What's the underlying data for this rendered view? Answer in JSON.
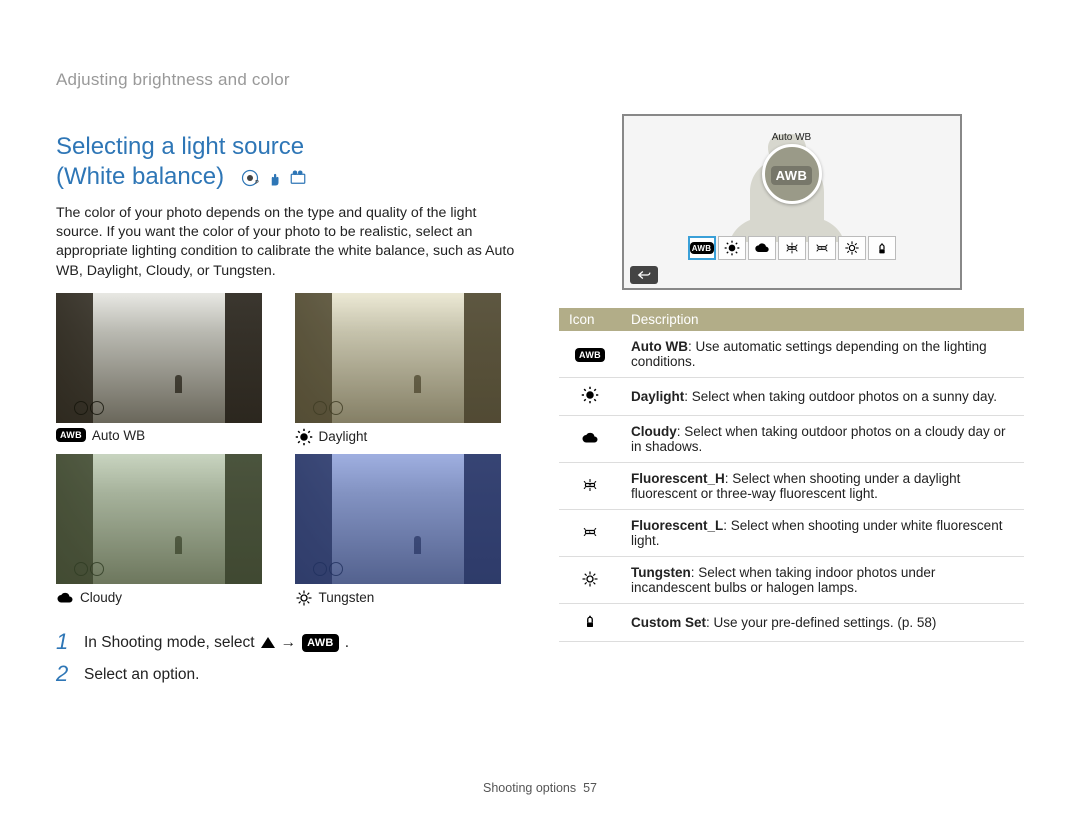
{
  "breadcrumb": "Adjusting brightness and color",
  "title_line1": "Selecting a light source",
  "title_line2": "(White balance)",
  "intro": "The color of your photo depends on the type and quality of the light source. If you want the color of your photo to be realistic, select an appropriate lighting condition to calibrate the white balance, such as Auto WB, Daylight, Cloudy, or Tungsten.",
  "samples": [
    {
      "label": "Auto WB",
      "icon": "awb",
      "tint_overlay": "rgba(0,0,0,0)"
    },
    {
      "label": "Daylight",
      "icon": "daylight",
      "tint_overlay": "rgba(255,240,150,0.18)"
    },
    {
      "label": "Cloudy",
      "icon": "cloudy",
      "tint_overlay": "rgba(120,160,100,0.28)"
    },
    {
      "label": "Tungsten",
      "icon": "tungsten",
      "tint_overlay": "rgba(50,90,220,0.40)"
    }
  ],
  "steps": {
    "s1_prefix": "In Shooting mode, select",
    "s1_arrow": "→",
    "s1_suffix": ".",
    "s2": "Select an option."
  },
  "screen": {
    "selected_label": "Auto WB",
    "selected_badge": "AWB",
    "picker_icons": [
      "awb",
      "daylight",
      "cloudy",
      "fluo_h",
      "fluo_l",
      "tungsten",
      "custom"
    ],
    "selected_index": 0
  },
  "table": {
    "header_icon": "Icon",
    "header_desc": "Description",
    "rows": [
      {
        "icon": "awb",
        "name": "Auto WB",
        "text": ": Use automatic settings depending on the lighting conditions."
      },
      {
        "icon": "daylight",
        "name": "Daylight",
        "text": ": Select when taking outdoor photos on a sunny day."
      },
      {
        "icon": "cloudy",
        "name": "Cloudy",
        "text": ": Select when taking outdoor photos on a cloudy day or in shadows."
      },
      {
        "icon": "fluo_h",
        "name": "Fluorescent_H",
        "text": ": Select when shooting under a daylight fluorescent or three-way fluorescent light."
      },
      {
        "icon": "fluo_l",
        "name": "Fluorescent_L",
        "text": ": Select when shooting under white fluorescent light."
      },
      {
        "icon": "tungsten",
        "name": "Tungsten",
        "text": ": Select when taking indoor photos under incandescent bulbs or halogen lamps."
      },
      {
        "icon": "custom",
        "name": "Custom Set",
        "text": ": Use your pre-defined settings. (p. 58)"
      }
    ]
  },
  "footer_label": "Shooting options",
  "footer_page": "57",
  "colors": {
    "accent_blue": "#2e76b6",
    "table_header": "#b2ad88",
    "screen_circle": "#9a9a88"
  }
}
